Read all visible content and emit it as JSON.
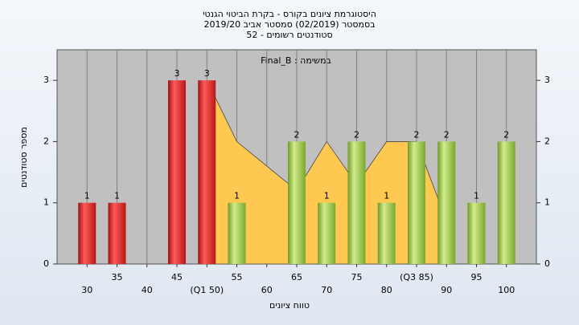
{
  "chart_data": {
    "type": "bar",
    "title": [
      "היסטוגרמת ציונים בקורס - בקרת הביטוי הגנטי",
      "בסמסטר (02/2019) סמסטר אביב 2019/20",
      "סטודנטים רשומים - 52"
    ],
    "annotation": "במשימה : Final_B",
    "y_label": "מספר סטודנטים",
    "x_label": "טווח ציונים",
    "categories": [
      "30",
      "35",
      "40",
      "45",
      "(Q1 50)",
      "55",
      "60",
      "65",
      "70",
      "75",
      "80",
      "(Q3 85)",
      "90",
      "95",
      "100"
    ],
    "values": [
      1,
      1,
      0,
      3,
      3,
      1,
      0,
      2,
      1,
      2,
      1,
      2,
      2,
      1,
      2
    ],
    "colors": [
      "#e82020",
      "#e82020",
      "#e82020",
      "#e82020",
      "#e82020",
      "#8fbf3a",
      "#8fbf3a",
      "#8fbf3a",
      "#8fbf3a",
      "#8fbf3a",
      "#8fbf3a",
      "#8fbf3a",
      "#8fbf3a",
      "#8fbf3a",
      "#8fbf3a"
    ],
    "area": {
      "color": "#ffc850",
      "values": [
        null,
        null,
        null,
        null,
        3,
        2,
        1.6,
        1.2,
        2,
        1.3,
        2,
        2,
        0.7,
        null,
        null
      ]
    },
    "ylim": [
      0,
      3.5
    ],
    "yticks": [
      0,
      1,
      2,
      3
    ],
    "y2lim": [
      0,
      3.5
    ],
    "y2ticks": [
      0,
      1,
      2,
      3
    ],
    "grid": "x"
  }
}
